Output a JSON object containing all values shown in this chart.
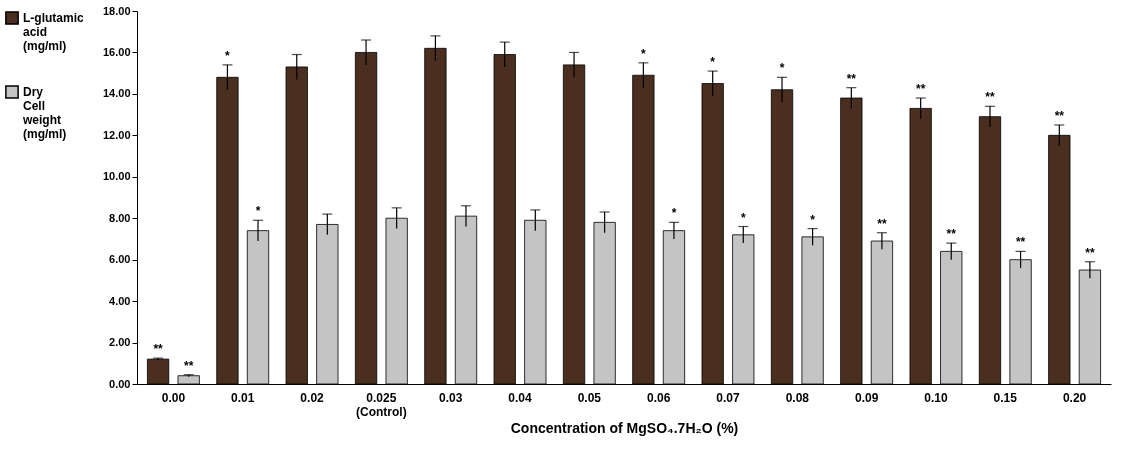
{
  "chart_data": {
    "type": "bar",
    "xlabel": "Concentration of MgSO₄.7H₂O  (%)",
    "categories": [
      "0.00",
      "0.01",
      "0.02",
      "0.025 (Control)",
      "0.03",
      "0.04",
      "0.05",
      "0.06",
      "0.07",
      "0.08",
      "0.09",
      "0.10",
      "0.15",
      "0.20"
    ],
    "series": [
      {
        "name": "L-glutamic acid (mg/ml)",
        "color": "#4a2e1f",
        "values": [
          1.2,
          14.8,
          15.3,
          16.0,
          16.2,
          15.9,
          15.4,
          14.9,
          14.5,
          14.2,
          13.8,
          13.3,
          12.9,
          12.0
        ],
        "errors": [
          0.05,
          0.6,
          0.6,
          0.6,
          0.6,
          0.6,
          0.6,
          0.6,
          0.6,
          0.6,
          0.5,
          0.5,
          0.5,
          0.5
        ]
      },
      {
        "name": "Dry Cell weight (mg/ml)",
        "color": "#c4c4c4",
        "values": [
          0.4,
          7.4,
          7.7,
          8.0,
          8.1,
          7.9,
          7.8,
          7.4,
          7.2,
          7.1,
          6.9,
          6.4,
          6.0,
          5.5
        ],
        "errors": [
          0.05,
          0.5,
          0.5,
          0.5,
          0.5,
          0.5,
          0.5,
          0.4,
          0.4,
          0.4,
          0.4,
          0.4,
          0.4,
          0.4
        ]
      }
    ],
    "ylim": [
      0,
      18
    ],
    "yticks": [
      {
        "value": 0,
        "label": "0.00"
      },
      {
        "value": 2,
        "label": "2.00"
      },
      {
        "value": 4,
        "label": "4.00"
      },
      {
        "value": 6,
        "label": "6.00"
      },
      {
        "value": 8,
        "label": "8.00"
      },
      {
        "value": 10,
        "label": "10.00"
      },
      {
        "value": 12,
        "label": "12.00"
      },
      {
        "value": 14,
        "label": "14.00"
      },
      {
        "value": 16,
        "label": "16.00"
      },
      {
        "value": 18,
        "label": "18.00"
      }
    ],
    "annotations": [
      {
        "text": "**",
        "x": "0.00",
        "y": 1.2
      },
      {
        "text": "*",
        "x": "0.01",
        "y": 14.8
      },
      {
        "text": "*",
        "x": "0.06",
        "y": 14.9
      },
      {
        "text": "*",
        "x": "0.07",
        "y": 14.5
      },
      {
        "text": "*",
        "x": "0.08",
        "y": 14.2
      },
      {
        "text": "**",
        "x": "0.09",
        "y": 13.8
      },
      {
        "text": "**",
        "x": "0.10",
        "y": 13.3
      },
      {
        "text": "**",
        "x": "0.15",
        "y": 12.9
      },
      {
        "text": "**",
        "x": "0.20",
        "y": 12.0
      },
      {
        "text": "**",
        "x": "0.00",
        "y": 0.4
      },
      {
        "text": "*",
        "x": "0.01",
        "y": 7.4
      },
      {
        "text": "*",
        "x": "0.06",
        "y": 7.4
      },
      {
        "text": "*",
        "x": "0.07",
        "y": 7.2
      },
      {
        "text": "*",
        "x": "0.08",
        "y": 7.1
      },
      {
        "text": "**",
        "x": "0.09",
        "y": 6.9
      },
      {
        "text": "**",
        "x": "0.10",
        "y": 6.4
      },
      {
        "text": "**",
        "x": "0.15",
        "y": 6.0
      },
      {
        "text": "**",
        "x": "0.20",
        "y": 5.5
      }
    ],
    "legend": "left",
    "grid": false
  }
}
